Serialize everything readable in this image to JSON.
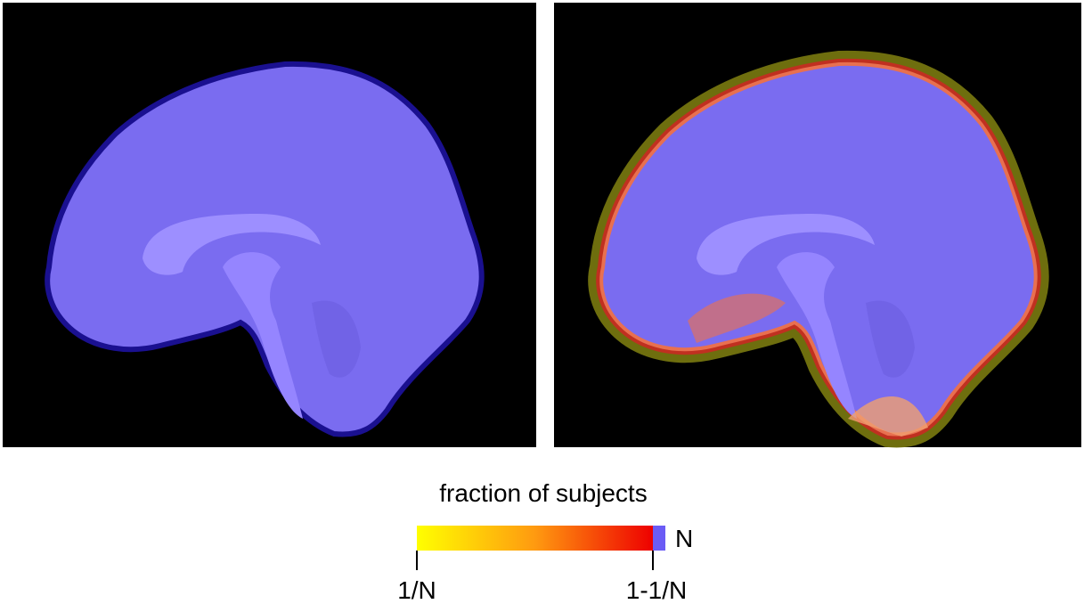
{
  "colorbar": {
    "title": "fraction of subjects",
    "end_label": "N",
    "tick_labels": [
      "1/N",
      "1-1/N"
    ]
  }
}
